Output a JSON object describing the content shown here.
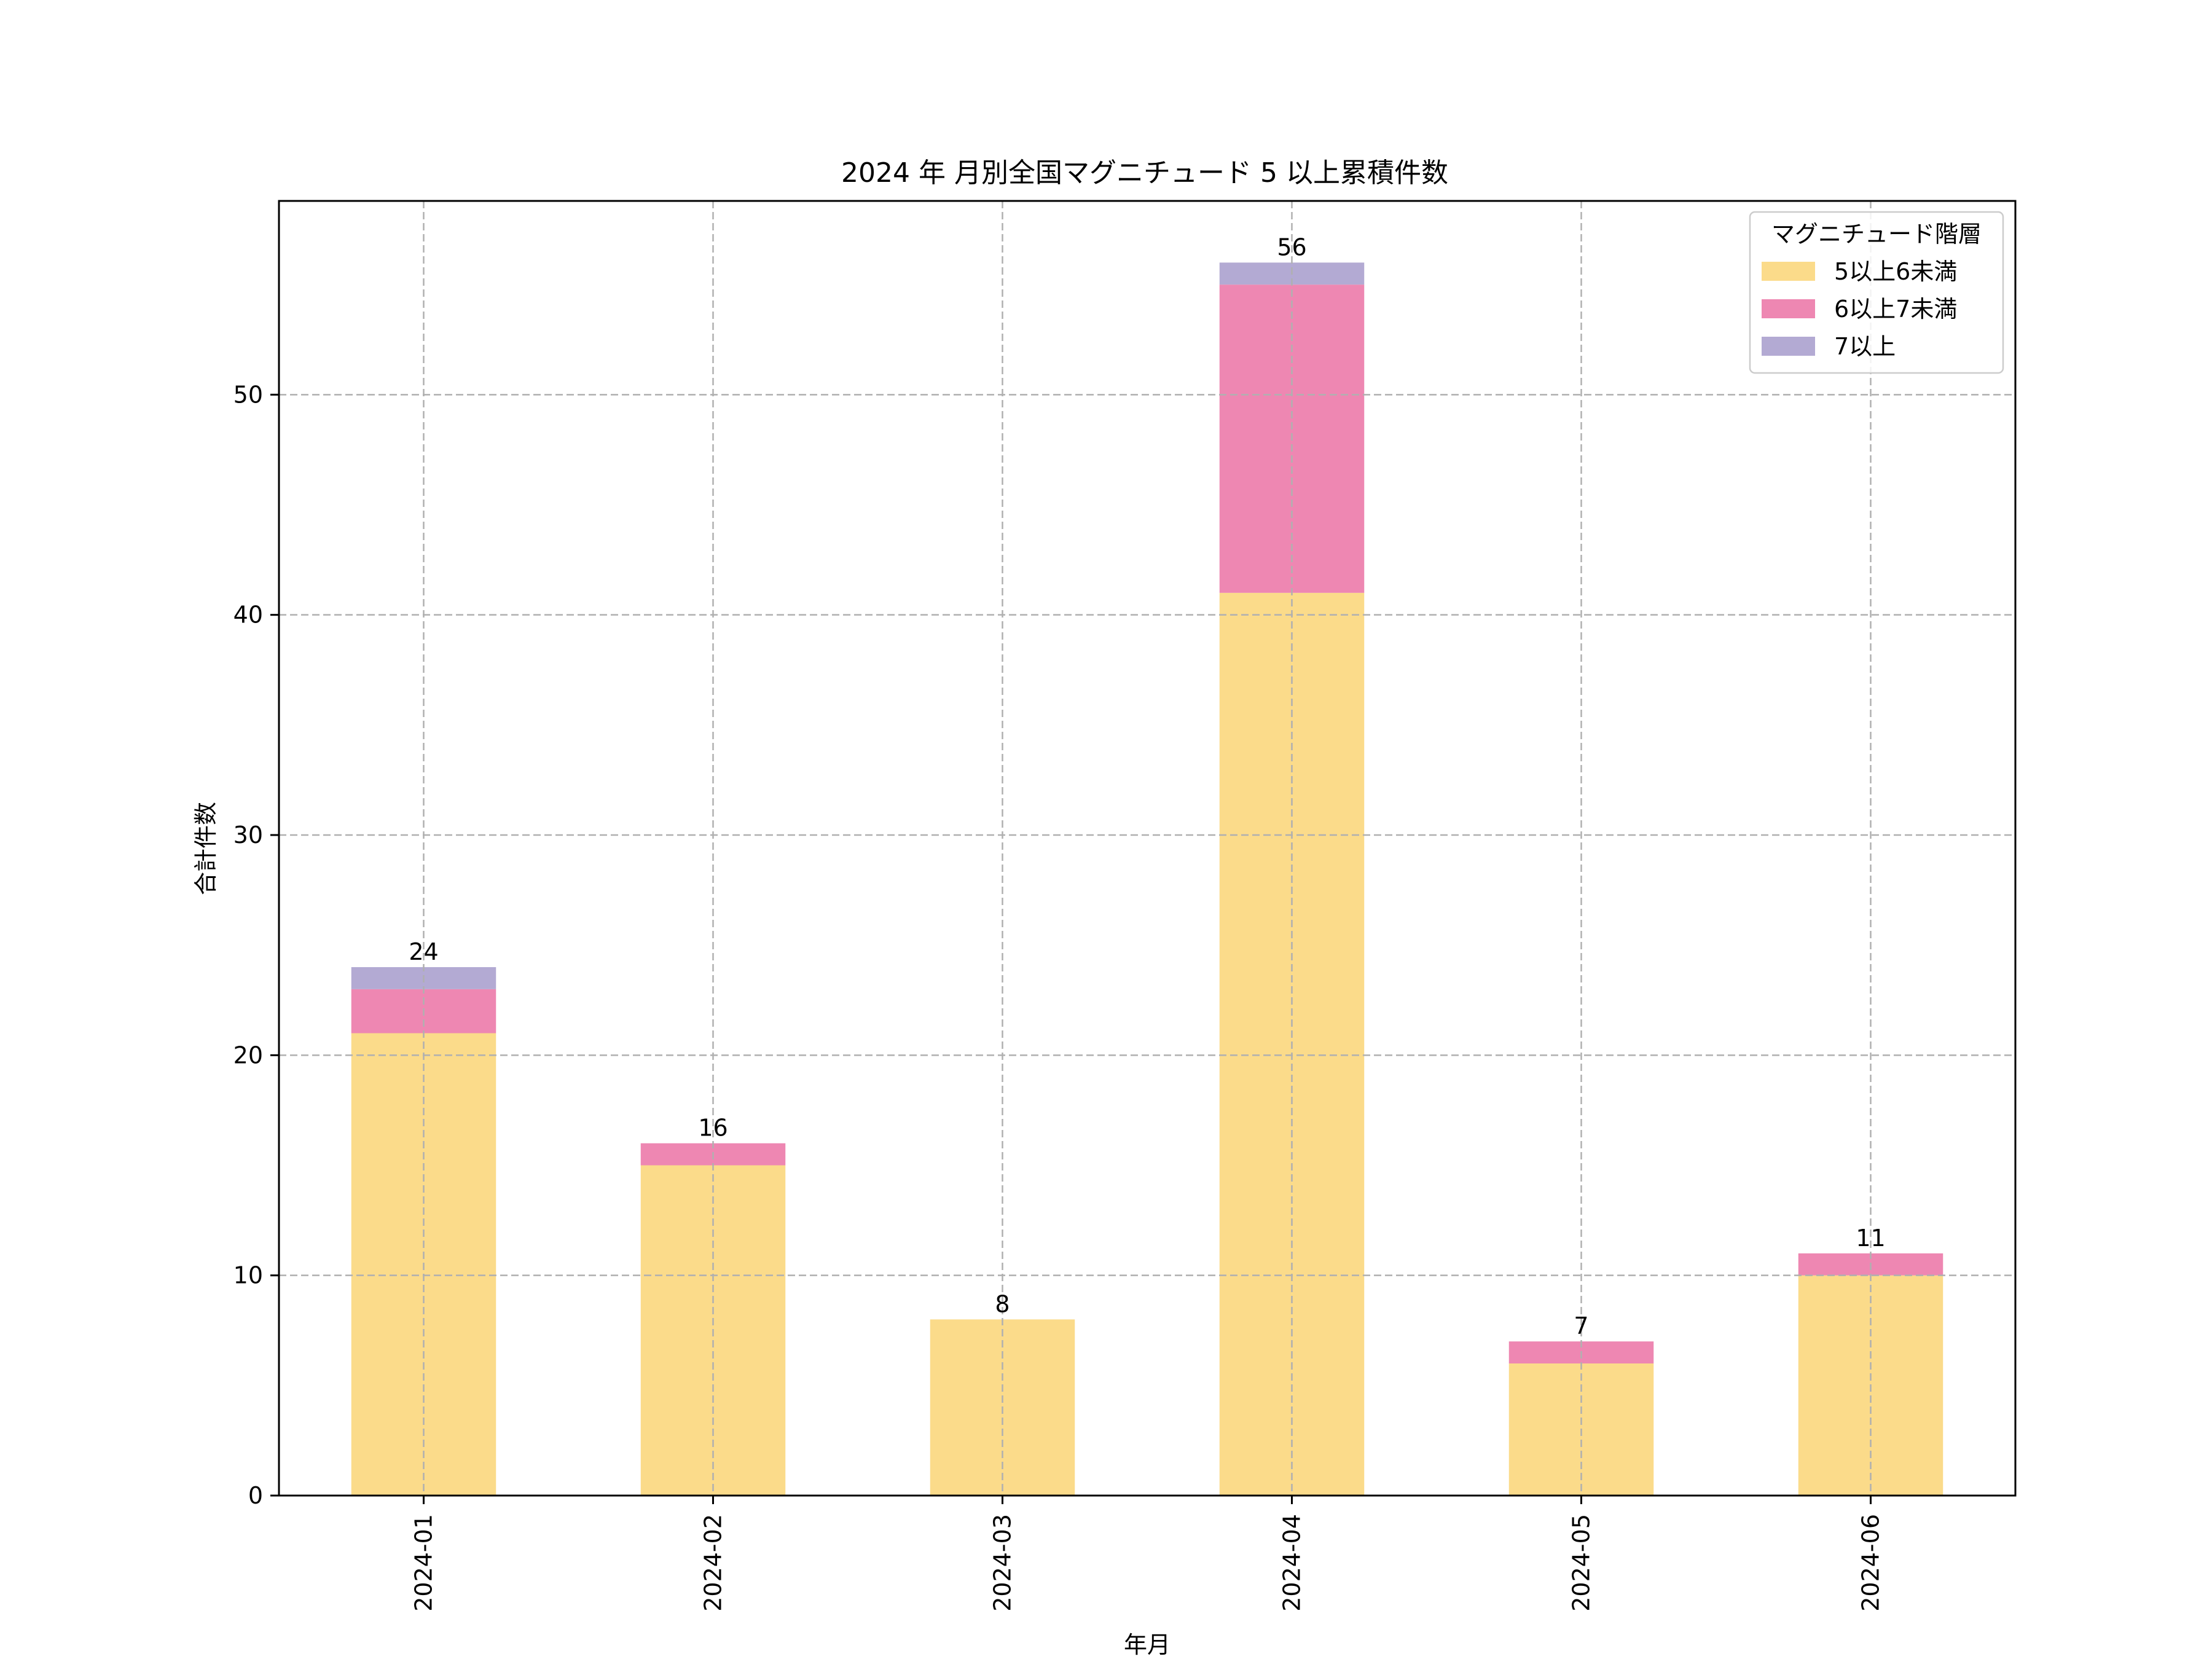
{
  "chart_data": {
    "type": "bar",
    "stacked": true,
    "title": "2024 年 月別全国マグニチュード 5 以上累積件数",
    "xlabel": "年月",
    "ylabel": "合計件数",
    "categories": [
      "2024-01",
      "2024-02",
      "2024-03",
      "2024-04",
      "2024-05",
      "2024-06"
    ],
    "series": [
      {
        "name": "5以上6未満",
        "values": [
          21,
          15,
          8,
          41,
          6,
          10
        ],
        "color": "#fbdb8a"
      },
      {
        "name": "6以上7未満",
        "values": [
          2,
          1,
          0,
          14,
          1,
          1
        ],
        "color": "#ee87b2"
      },
      {
        "name": "7以上",
        "values": [
          1,
          0,
          0,
          1,
          0,
          0
        ],
        "color": "#b3aad3"
      }
    ],
    "totals": [
      "24",
      "16",
      "8",
      "56",
      "7",
      "11"
    ],
    "ylim": [
      0,
      58.8
    ],
    "yticks": [
      "0",
      "10",
      "20",
      "30",
      "40",
      "50"
    ],
    "grid": true,
    "legend": {
      "title": "マグニチュード階層",
      "position": "top-right"
    }
  }
}
